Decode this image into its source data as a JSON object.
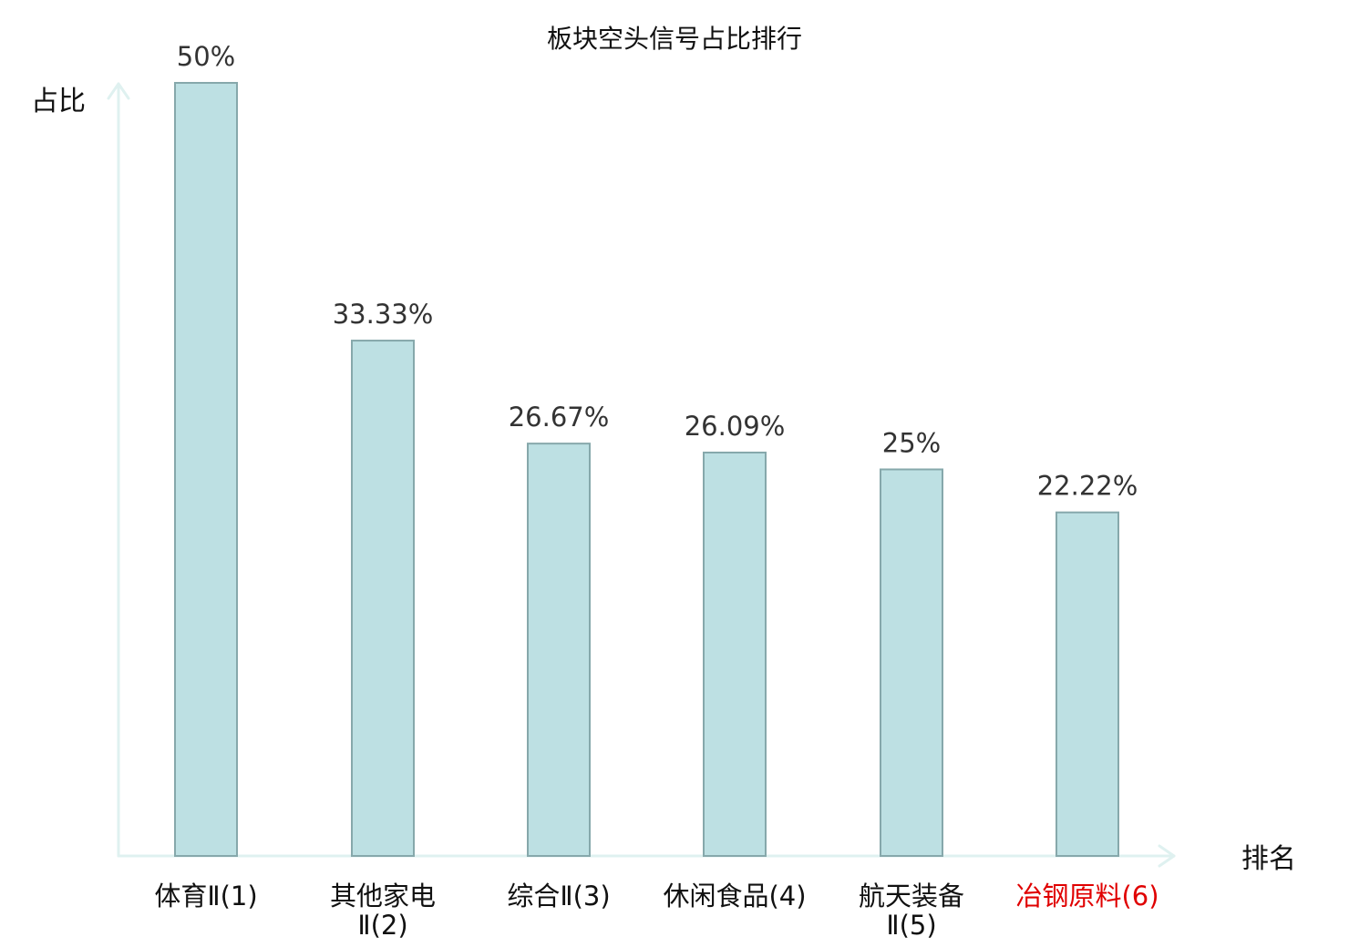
{
  "chart_data": {
    "type": "bar",
    "title": "板块空头信号占比排行",
    "xlabel": "排名",
    "ylabel": "占比",
    "ylim": [
      0,
      50
    ],
    "grid": false,
    "categories": [
      [
        "体育Ⅱ(1)"
      ],
      [
        "其他家电",
        "Ⅱ(2)"
      ],
      [
        "综合Ⅱ(3)"
      ],
      [
        "休闲食品(4)"
      ],
      [
        "航天装备",
        "Ⅱ(5)"
      ],
      [
        "冶钢原料(6)"
      ]
    ],
    "values": [
      50,
      33.33,
      26.67,
      26.09,
      25,
      22.22
    ],
    "value_labels": [
      "50%",
      "33.33%",
      "26.67%",
      "26.09%",
      "25%",
      "22.22%"
    ],
    "highlight_index": 5
  },
  "colors": {
    "bar_fill": "#bde0e3",
    "bar_stroke": "#86a8ab",
    "axis": "#dff1f0",
    "highlight_text": "#e00000",
    "text": "#111111",
    "value_text": "#333333"
  }
}
